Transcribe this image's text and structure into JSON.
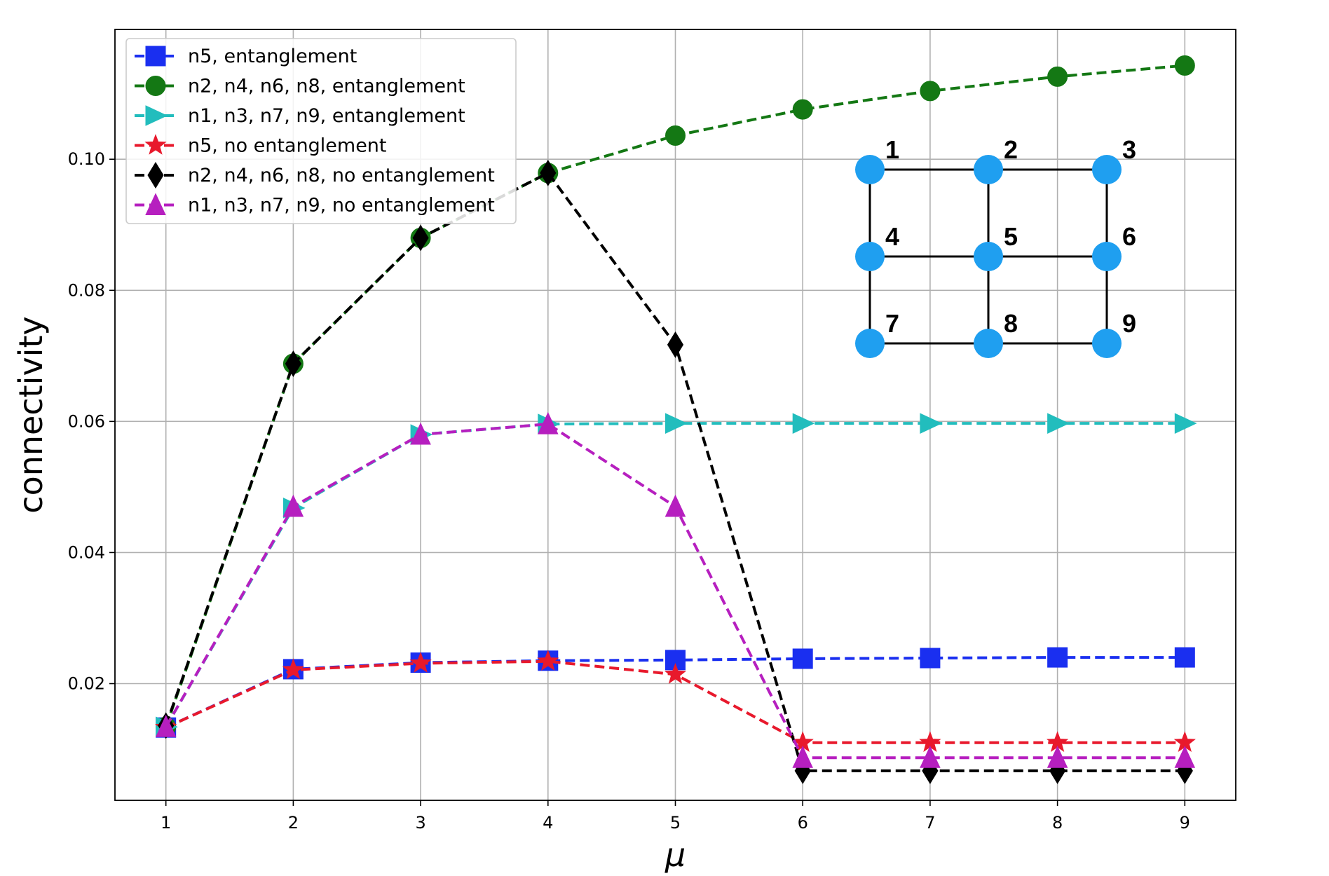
{
  "chart_data": {
    "type": "line",
    "xlabel": "μ",
    "ylabel": "connectivity",
    "x": [
      1,
      2,
      3,
      4,
      5,
      6,
      7,
      8,
      9
    ],
    "xlim": [
      0.6,
      9.4
    ],
    "ylim": [
      0.0022,
      0.1198
    ],
    "xticks": [
      1,
      2,
      3,
      4,
      5,
      6,
      7,
      8,
      9
    ],
    "yticks": [
      0.02,
      0.04,
      0.06,
      0.08,
      0.1
    ],
    "ytick_labels": [
      "0.02",
      "0.04",
      "0.06",
      "0.08",
      "0.10"
    ],
    "grid": true,
    "legend_position": "top-left",
    "series": [
      {
        "name": "n5, entanglement",
        "color": "#1a2ff0",
        "marker": "square",
        "linestyle": "dashed",
        "values": [
          0.0133,
          0.0222,
          0.0232,
          0.0235,
          0.0236,
          0.0238,
          0.0239,
          0.024,
          0.024
        ]
      },
      {
        "name": "n2, n4, n6, n8, entanglement",
        "color": "#147814",
        "marker": "circle",
        "linestyle": "dashed",
        "values": [
          0.0134,
          0.0688,
          0.088,
          0.0979,
          0.1036,
          0.1076,
          0.1104,
          0.1126,
          0.1143
        ]
      },
      {
        "name": "n1, n3, n7, n9, entanglement",
        "color": "#22bdbd",
        "marker": "triangle-right",
        "linestyle": "dashed",
        "values": [
          0.0134,
          0.0468,
          0.058,
          0.0596,
          0.0597,
          0.0597,
          0.0597,
          0.0597,
          0.0597
        ]
      },
      {
        "name": "n5, no entanglement",
        "color": "#e8192c",
        "marker": "star",
        "linestyle": "dashed",
        "values": [
          0.0133,
          0.0221,
          0.0231,
          0.0234,
          0.0214,
          0.011,
          0.011,
          0.011,
          0.011
        ]
      },
      {
        "name": "n2, n4, n6, n8, no entanglement",
        "color": "#000000",
        "marker": "diamond",
        "linestyle": "dashed",
        "values": [
          0.0136,
          0.0688,
          0.088,
          0.0979,
          0.0717,
          0.0067,
          0.0067,
          0.0067,
          0.0067
        ]
      },
      {
        "name": "n1, n3, n7, n9, no entanglement",
        "color": "#b61fbf",
        "marker": "triangle-up",
        "linestyle": "dashed",
        "values": [
          0.0134,
          0.047,
          0.058,
          0.0596,
          0.047,
          0.0087,
          0.0087,
          0.0087,
          0.0087
        ]
      }
    ]
  },
  "inset": {
    "node_color": "#1f9ff0",
    "edge_color": "#000000",
    "nodes": [
      {
        "label": "1",
        "row": 0,
        "col": 0
      },
      {
        "label": "2",
        "row": 0,
        "col": 1
      },
      {
        "label": "3",
        "row": 0,
        "col": 2
      },
      {
        "label": "4",
        "row": 1,
        "col": 0
      },
      {
        "label": "5",
        "row": 1,
        "col": 1
      },
      {
        "label": "6",
        "row": 1,
        "col": 2
      },
      {
        "label": "7",
        "row": 2,
        "col": 0
      },
      {
        "label": "8",
        "row": 2,
        "col": 1
      },
      {
        "label": "9",
        "row": 2,
        "col": 2
      }
    ],
    "edges": [
      [
        0,
        1
      ],
      [
        1,
        2
      ],
      [
        3,
        4
      ],
      [
        4,
        5
      ],
      [
        6,
        7
      ],
      [
        7,
        8
      ],
      [
        0,
        3
      ],
      [
        3,
        6
      ],
      [
        1,
        4
      ],
      [
        4,
        7
      ],
      [
        2,
        5
      ],
      [
        5,
        8
      ]
    ]
  }
}
